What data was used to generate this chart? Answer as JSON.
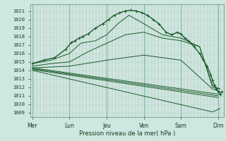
{
  "bg_color": "#cce8e0",
  "grid_minor_color": "#b8d8cc",
  "grid_major_color": "#88b8a8",
  "line_color": "#1a5c2a",
  "title": "Pression niveau de la mer( hPa )",
  "ylim": [
    1008.5,
    1021.8
  ],
  "yticks": [
    1009,
    1010,
    1011,
    1012,
    1013,
    1014,
    1015,
    1016,
    1017,
    1018,
    1019,
    1020,
    1021
  ],
  "day_labels": [
    "Mer",
    "Lun",
    "Jeu",
    "Ven",
    "Sam",
    "Dim"
  ],
  "day_positions": [
    0,
    1,
    2,
    3,
    4,
    5
  ],
  "xlim": [
    -0.05,
    5.15
  ],
  "lines": [
    {
      "x": [
        0,
        5.0
      ],
      "y": [
        1014.3,
        1011.2
      ]
    },
    {
      "x": [
        0,
        5.0
      ],
      "y": [
        1014.2,
        1011.0
      ]
    },
    {
      "x": [
        0,
        5.0
      ],
      "y": [
        1014.1,
        1010.8
      ]
    },
    {
      "x": [
        0,
        4.85,
        5.05
      ],
      "y": [
        1014.0,
        1009.1,
        1009.5
      ]
    },
    {
      "x": [
        0,
        1.0,
        2.0,
        3.0,
        4.0,
        4.85,
        5.05
      ],
      "y": [
        1014.3,
        1014.5,
        1015.2,
        1015.8,
        1015.2,
        1011.8,
        1011.5
      ]
    },
    {
      "x": [
        0,
        0.5,
        1.0,
        1.5,
        2.0,
        2.5,
        3.0,
        3.5,
        4.0,
        4.5,
        4.85,
        5.05
      ],
      "y": [
        1014.5,
        1014.8,
        1015.0,
        1016.2,
        1017.2,
        1018.2,
        1018.5,
        1017.8,
        1017.5,
        1016.8,
        1012.0,
        1011.8
      ]
    },
    {
      "x": [
        0,
        0.5,
        1.0,
        1.3,
        1.7,
        2.0,
        2.3,
        2.6,
        3.0,
        3.5,
        4.0,
        4.5,
        4.85,
        5.05
      ],
      "y": [
        1014.8,
        1015.2,
        1016.0,
        1017.2,
        1017.5,
        1018.2,
        1019.5,
        1020.5,
        1019.5,
        1018.2,
        1017.8,
        1016.8,
        1012.2,
        1011.8
      ]
    },
    {
      "x": [
        0,
        0.3,
        0.6,
        0.9,
        1.05,
        1.15,
        1.25,
        1.35,
        1.5,
        1.7,
        1.9,
        2.05,
        2.2,
        2.35,
        2.5,
        2.65,
        2.8,
        2.95,
        3.1,
        3.25,
        3.4,
        3.6,
        3.75,
        3.9,
        4.0,
        4.1,
        4.2,
        4.35,
        4.5,
        4.6,
        4.7,
        4.8,
        4.85,
        4.9,
        4.95,
        5.0,
        5.05,
        5.1
      ],
      "y": [
        1014.8,
        1015.2,
        1015.5,
        1016.5,
        1017.3,
        1017.5,
        1017.8,
        1018.0,
        1018.3,
        1019.0,
        1019.5,
        1020.0,
        1020.5,
        1020.8,
        1021.0,
        1021.1,
        1021.0,
        1020.8,
        1020.5,
        1020.0,
        1019.5,
        1018.5,
        1018.2,
        1018.5,
        1018.3,
        1017.8,
        1017.5,
        1016.8,
        1016.0,
        1015.2,
        1014.5,
        1013.5,
        1012.8,
        1012.2,
        1011.8,
        1011.5,
        1011.2,
        1011.5
      ]
    }
  ]
}
